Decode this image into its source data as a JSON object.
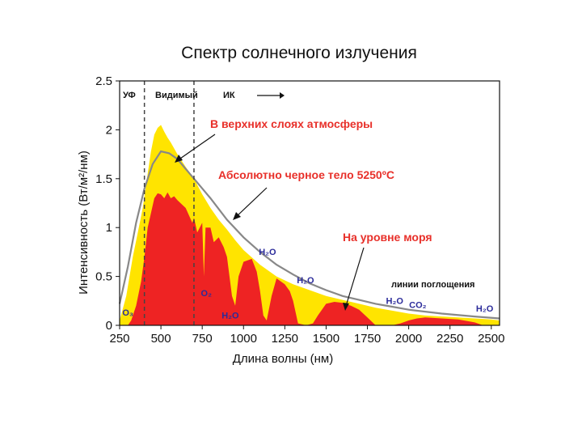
{
  "chart_data": {
    "type": "area",
    "title": "Спектр солнечного излучения",
    "xlabel": "Длина волны (нм)",
    "ylabel": "Интенсивность (Вт/м²/нм)",
    "xlim": [
      250,
      2550
    ],
    "ylim": [
      0,
      2.5
    ],
    "xticks": [
      "250",
      "500",
      "750",
      "1000",
      "1250",
      "1500",
      "1750",
      "2000",
      "2250",
      "2500"
    ],
    "yticks": [
      "0",
      "0.5",
      "1",
      "1.5",
      "2",
      "2.5"
    ],
    "grid": false,
    "region_labels": {
      "uv": "УФ",
      "visible": "Видимый",
      "ir": "ИК"
    },
    "region_bounds_nm": [
      400,
      700
    ],
    "annotations": {
      "top_atmosphere": "В верхних слоях атмосферы",
      "blackbody": "Абсолютно черное тело 5250ºС",
      "sea_level": "На уровне моря",
      "absorption_lines": "линии поглощения"
    },
    "absorption_labels": [
      {
        "text": "O₃",
        "x": 300,
        "y": 0.1
      },
      {
        "text": "O₂",
        "x": 775,
        "y": 0.3
      },
      {
        "text": "H₂O",
        "x": 920,
        "y": 0.07
      },
      {
        "text": "H₂O",
        "x": 1145,
        "y": 0.72
      },
      {
        "text": "H₂O",
        "x": 1375,
        "y": 0.43
      },
      {
        "text": "H₂O",
        "x": 1915,
        "y": 0.22
      },
      {
        "text": "CO₂",
        "x": 2055,
        "y": 0.18
      },
      {
        "text": "H₂O",
        "x": 2460,
        "y": 0.14
      }
    ],
    "series": [
      {
        "name": "В верхних слоях атмосферы",
        "color": "#ffe400",
        "points": [
          [
            250,
            0.05
          ],
          [
            290,
            0.3
          ],
          [
            330,
            0.7
          ],
          [
            360,
            0.95
          ],
          [
            390,
            1.2
          ],
          [
            420,
            1.55
          ],
          [
            440,
            1.78
          ],
          [
            460,
            1.95
          ],
          [
            480,
            2.02
          ],
          [
            500,
            2.05
          ],
          [
            520,
            1.98
          ],
          [
            540,
            1.92
          ],
          [
            560,
            1.87
          ],
          [
            600,
            1.75
          ],
          [
            650,
            1.62
          ],
          [
            700,
            1.5
          ],
          [
            750,
            1.34
          ],
          [
            800,
            1.2
          ],
          [
            850,
            1.08
          ],
          [
            900,
            0.98
          ],
          [
            950,
            0.87
          ],
          [
            1000,
            0.77
          ],
          [
            1100,
            0.62
          ],
          [
            1200,
            0.5
          ],
          [
            1300,
            0.42
          ],
          [
            1400,
            0.36
          ],
          [
            1500,
            0.3
          ],
          [
            1600,
            0.26
          ],
          [
            1700,
            0.22
          ],
          [
            1800,
            0.18
          ],
          [
            1900,
            0.15
          ],
          [
            2000,
            0.12
          ],
          [
            2100,
            0.1
          ],
          [
            2200,
            0.09
          ],
          [
            2300,
            0.08
          ],
          [
            2400,
            0.07
          ],
          [
            2500,
            0.06
          ],
          [
            2550,
            0.05
          ]
        ]
      },
      {
        "name": "Абсолютно черное тело 5250ºС",
        "color": "#888888",
        "points": [
          [
            250,
            0.22
          ],
          [
            300,
            0.6
          ],
          [
            350,
            1.05
          ],
          [
            400,
            1.4
          ],
          [
            450,
            1.65
          ],
          [
            500,
            1.78
          ],
          [
            550,
            1.76
          ],
          [
            600,
            1.7
          ],
          [
            650,
            1.6
          ],
          [
            700,
            1.5
          ],
          [
            800,
            1.3
          ],
          [
            900,
            1.08
          ],
          [
            1000,
            0.9
          ],
          [
            1100,
            0.75
          ],
          [
            1200,
            0.62
          ],
          [
            1300,
            0.52
          ],
          [
            1400,
            0.43
          ],
          [
            1500,
            0.36
          ],
          [
            1600,
            0.3
          ],
          [
            1700,
            0.26
          ],
          [
            1800,
            0.22
          ],
          [
            1900,
            0.19
          ],
          [
            2000,
            0.16
          ],
          [
            2200,
            0.12
          ],
          [
            2400,
            0.09
          ],
          [
            2550,
            0.07
          ]
        ]
      },
      {
        "name": "На уровне моря",
        "color": "#ee2323",
        "points": [
          [
            250,
            0.0
          ],
          [
            300,
            0.0
          ],
          [
            320,
            0.05
          ],
          [
            350,
            0.2
          ],
          [
            380,
            0.45
          ],
          [
            400,
            0.7
          ],
          [
            420,
            1.0
          ],
          [
            440,
            1.15
          ],
          [
            460,
            1.3
          ],
          [
            480,
            1.35
          ],
          [
            500,
            1.34
          ],
          [
            520,
            1.3
          ],
          [
            540,
            1.36
          ],
          [
            560,
            1.3
          ],
          [
            580,
            1.32
          ],
          [
            600,
            1.28
          ],
          [
            650,
            1.2
          ],
          [
            690,
            1.05
          ],
          [
            700,
            1.1
          ],
          [
            720,
            0.95
          ],
          [
            750,
            1.05
          ],
          [
            760,
            0.5
          ],
          [
            770,
            1.0
          ],
          [
            800,
            1.0
          ],
          [
            820,
            0.85
          ],
          [
            850,
            0.9
          ],
          [
            880,
            0.8
          ],
          [
            900,
            0.7
          ],
          [
            930,
            0.3
          ],
          [
            950,
            0.2
          ],
          [
            970,
            0.5
          ],
          [
            1000,
            0.65
          ],
          [
            1050,
            0.68
          ],
          [
            1080,
            0.55
          ],
          [
            1100,
            0.35
          ],
          [
            1120,
            0.1
          ],
          [
            1140,
            0.05
          ],
          [
            1170,
            0.3
          ],
          [
            1200,
            0.48
          ],
          [
            1250,
            0.42
          ],
          [
            1280,
            0.35
          ],
          [
            1300,
            0.25
          ],
          [
            1330,
            0.02
          ],
          [
            1380,
            0.0
          ],
          [
            1420,
            0.02
          ],
          [
            1450,
            0.1
          ],
          [
            1500,
            0.22
          ],
          [
            1550,
            0.24
          ],
          [
            1600,
            0.23
          ],
          [
            1650,
            0.2
          ],
          [
            1700,
            0.16
          ],
          [
            1750,
            0.08
          ],
          [
            1800,
            0.0
          ],
          [
            1900,
            0.0
          ],
          [
            1950,
            0.02
          ],
          [
            2000,
            0.05
          ],
          [
            2050,
            0.07
          ],
          [
            2100,
            0.08
          ],
          [
            2200,
            0.07
          ],
          [
            2300,
            0.06
          ],
          [
            2400,
            0.03
          ],
          [
            2450,
            0.0
          ],
          [
            2550,
            0.0
          ]
        ]
      }
    ]
  }
}
